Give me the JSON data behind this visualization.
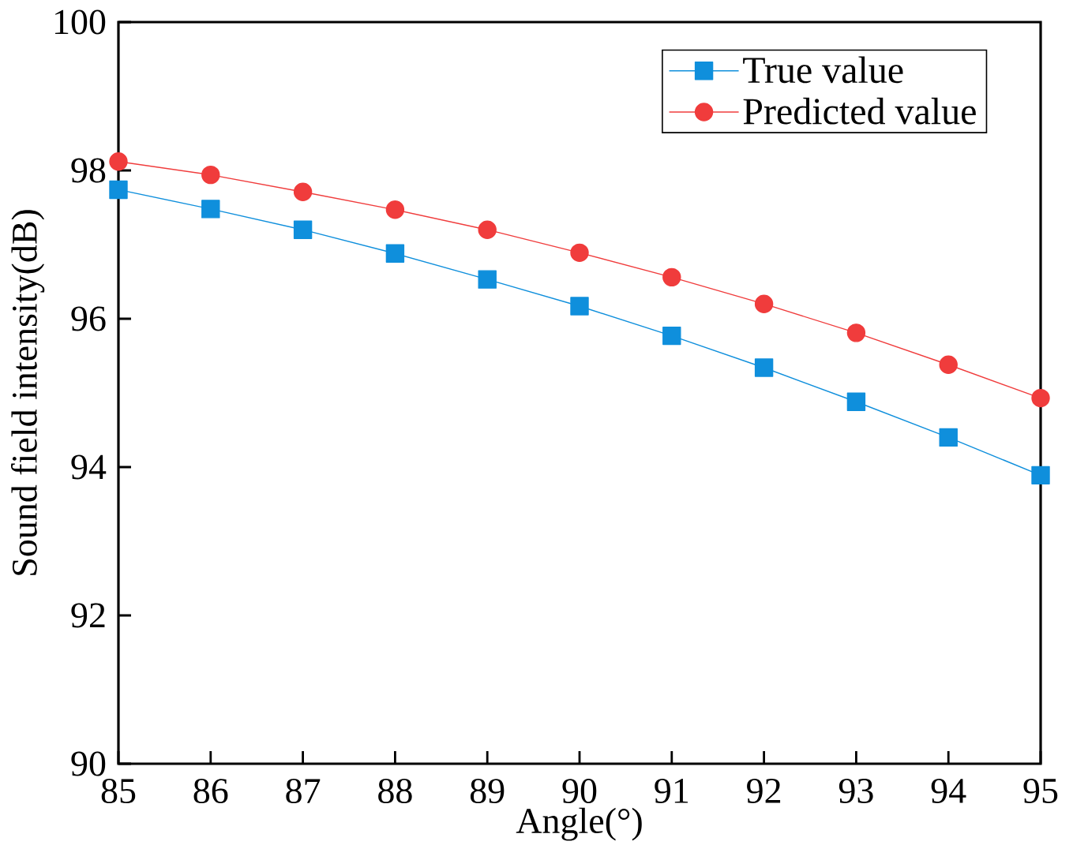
{
  "chart_data": {
    "type": "line",
    "xlabel": "Angle(°)",
    "ylabel": "Sound field intensity(dB)",
    "x": [
      85,
      86,
      87,
      88,
      89,
      90,
      91,
      92,
      93,
      94,
      95
    ],
    "series": [
      {
        "name": "True value",
        "color": "#0f8fdc",
        "marker": "square",
        "values": [
          97.74,
          97.48,
          97.2,
          96.88,
          96.53,
          96.17,
          95.77,
          95.34,
          94.88,
          94.4,
          93.89
        ]
      },
      {
        "name": "Predicted value",
        "color": "#f03c3c",
        "marker": "circle",
        "values": [
          98.12,
          97.94,
          97.71,
          97.47,
          97.2,
          96.89,
          96.56,
          96.2,
          95.81,
          95.38,
          94.93
        ]
      }
    ],
    "xlim": [
      85,
      95
    ],
    "ylim": [
      90,
      100
    ],
    "xticks": [
      85,
      86,
      87,
      88,
      89,
      90,
      91,
      92,
      93,
      94,
      95
    ],
    "yticks": [
      90,
      92,
      94,
      96,
      98,
      100
    ],
    "grid": false,
    "legend": "top right",
    "line_style": "solid"
  }
}
